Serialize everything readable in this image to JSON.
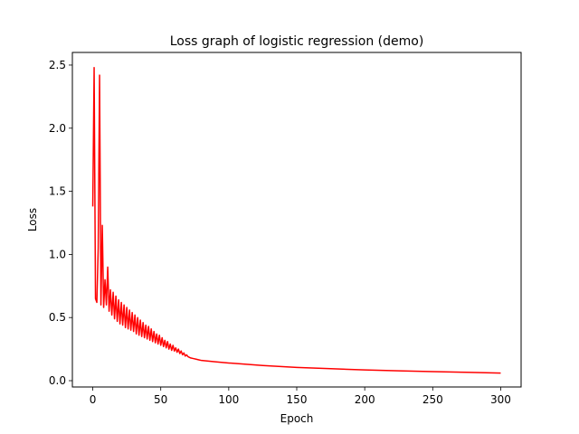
{
  "chart_data": {
    "type": "line",
    "title": "Loss graph of logistic regression (demo)",
    "xlabel": "Epoch",
    "ylabel": "Loss",
    "xlim": [
      -15,
      315
    ],
    "ylim": [
      -0.05,
      2.6
    ],
    "xticks": [
      0,
      50,
      100,
      150,
      200,
      250,
      300
    ],
    "xtick_labels": [
      "0",
      "50",
      "100",
      "150",
      "200",
      "250",
      "300"
    ],
    "yticks": [
      0.0,
      0.5,
      1.0,
      1.5,
      2.0,
      2.5
    ],
    "ytick_labels": [
      "0.0",
      "0.5",
      "1.0",
      "1.5",
      "2.0",
      "2.5"
    ],
    "grid": false,
    "legend": "none",
    "series": [
      {
        "color": "#ff0000",
        "x": [
          0,
          1,
          2,
          3,
          4,
          5,
          6,
          7,
          8,
          9,
          10,
          11,
          12,
          13,
          14,
          15,
          16,
          17,
          18,
          19,
          20,
          21,
          22,
          23,
          24,
          25,
          26,
          27,
          28,
          29,
          30,
          31,
          32,
          33,
          34,
          35,
          36,
          37,
          38,
          39,
          40,
          41,
          42,
          43,
          44,
          45,
          46,
          47,
          48,
          49,
          50,
          51,
          52,
          53,
          54,
          55,
          56,
          57,
          58,
          59,
          60,
          61,
          62,
          63,
          64,
          65,
          66,
          67,
          68,
          69,
          70,
          72,
          74,
          76,
          78,
          80,
          85,
          90,
          100,
          125,
          150,
          175,
          200,
          225,
          250,
          275,
          300
        ],
        "y": [
          1.38,
          2.48,
          0.65,
          0.62,
          1.05,
          2.42,
          0.6,
          1.23,
          0.58,
          0.8,
          0.6,
          0.9,
          0.55,
          0.72,
          0.52,
          0.7,
          0.49,
          0.67,
          0.47,
          0.64,
          0.45,
          0.62,
          0.44,
          0.6,
          0.42,
          0.58,
          0.41,
          0.56,
          0.4,
          0.54,
          0.39,
          0.52,
          0.37,
          0.5,
          0.36,
          0.48,
          0.35,
          0.46,
          0.34,
          0.44,
          0.33,
          0.43,
          0.32,
          0.41,
          0.31,
          0.39,
          0.3,
          0.37,
          0.29,
          0.36,
          0.28,
          0.34,
          0.27,
          0.32,
          0.26,
          0.31,
          0.25,
          0.29,
          0.24,
          0.28,
          0.235,
          0.26,
          0.225,
          0.25,
          0.215,
          0.235,
          0.205,
          0.22,
          0.195,
          0.205,
          0.19,
          0.18,
          0.175,
          0.17,
          0.165,
          0.16,
          0.155,
          0.15,
          0.14,
          0.12,
          0.105,
          0.095,
          0.085,
          0.078,
          0.072,
          0.066,
          0.06
        ]
      }
    ]
  }
}
